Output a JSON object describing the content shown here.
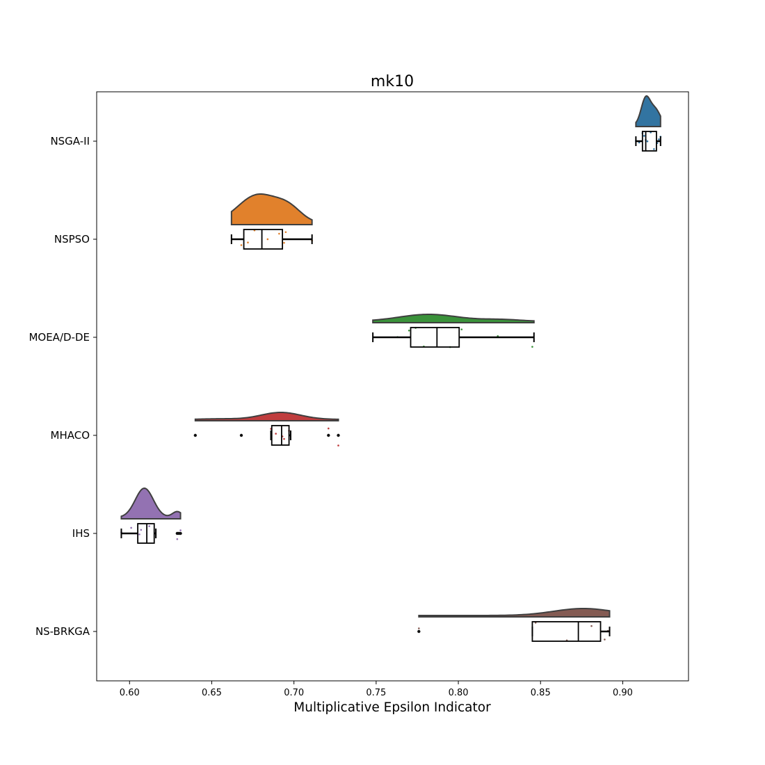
{
  "chart_data": {
    "type": "raincloud",
    "title": "mk10",
    "xlabel": "Multiplicative Epsilon Indicator",
    "ylabel": "",
    "xlim": [
      0.58,
      0.94
    ],
    "xticks": [
      "0.60",
      "0.65",
      "0.70",
      "0.75",
      "0.80",
      "0.85",
      "0.90"
    ],
    "categories": [
      "NSGA-II",
      "NSPSO",
      "MOEA/D-DE",
      "MHACO",
      "IHS",
      "NS-BRKGA"
    ],
    "series": [
      {
        "name": "NSGA-II",
        "color": "#3274a1",
        "box": {
          "whislo": 0.908,
          "q1": 0.912,
          "med": 0.914,
          "q3": 0.9205,
          "whishi": 0.923
        },
        "fliers": [],
        "violin_range": [
          0.908,
          0.923
        ],
        "kde_peaks": [
          {
            "mu": 0.914,
            "sigma": 0.0028,
            "w": 1.0
          },
          {
            "mu": 0.92,
            "sigma": 0.003,
            "w": 0.55
          }
        ],
        "points": [
          0.908,
          0.91,
          0.912,
          0.913,
          0.914,
          0.915,
          0.917,
          0.919,
          0.921,
          0.922,
          0.923
        ]
      },
      {
        "name": "NSPSO",
        "color": "#e1812c",
        "box": {
          "whislo": 0.662,
          "q1": 0.6695,
          "med": 0.6805,
          "q3": 0.693,
          "whishi": 0.711
        },
        "fliers": [],
        "violin_range": [
          0.662,
          0.711
        ],
        "kde_peaks": [
          {
            "mu": 0.678,
            "sigma": 0.012,
            "w": 1.0
          },
          {
            "mu": 0.697,
            "sigma": 0.008,
            "w": 0.45
          }
        ],
        "points": [
          0.668,
          0.672,
          0.676,
          0.684,
          0.691,
          0.694,
          0.695,
          0.711
        ]
      },
      {
        "name": "MOEA/D-DE",
        "color": "#3a923a",
        "box": {
          "whislo": 0.748,
          "q1": 0.771,
          "med": 0.787,
          "q3": 0.8005,
          "whishi": 0.846
        },
        "fliers": [],
        "violin_range": [
          0.748,
          0.846
        ],
        "kde_peaks": [
          {
            "mu": 0.782,
            "sigma": 0.018,
            "w": 1.0
          },
          {
            "mu": 0.826,
            "sigma": 0.012,
            "w": 0.25
          }
        ],
        "points": [
          0.763,
          0.77,
          0.774,
          0.779,
          0.795,
          0.802,
          0.824,
          0.845
        ]
      },
      {
        "name": "MHACO",
        "color": "#c03d3e",
        "box": {
          "whislo": 0.686,
          "q1": 0.6865,
          "med": 0.6925,
          "q3": 0.697,
          "whishi": 0.698
        },
        "fliers": [
          0.64,
          0.668,
          0.721,
          0.727
        ],
        "violin_range": [
          0.64,
          0.727
        ],
        "kde_peaks": [
          {
            "mu": 0.692,
            "sigma": 0.012,
            "w": 1.0
          },
          {
            "mu": 0.655,
            "sigma": 0.01,
            "w": 0.08
          }
        ],
        "points": [
          0.686,
          0.689,
          0.693,
          0.694,
          0.697,
          0.721,
          0.727
        ]
      },
      {
        "name": "IHS",
        "color": "#9372b2",
        "box": {
          "whislo": 0.595,
          "q1": 0.605,
          "med": 0.6105,
          "q3": 0.615,
          "whishi": 0.616
        },
        "fliers": [
          0.629,
          0.63,
          0.631
        ],
        "violin_range": [
          0.595,
          0.631
        ],
        "kde_peaks": [
          {
            "mu": 0.609,
            "sigma": 0.0055,
            "w": 1.0
          },
          {
            "mu": 0.629,
            "sigma": 0.003,
            "w": 0.2
          }
        ],
        "points": [
          0.595,
          0.601,
          0.606,
          0.607,
          0.612,
          0.629,
          0.631
        ]
      },
      {
        "name": "NS-BRKGA",
        "color": "#845b53",
        "box": {
          "whislo": 0.845,
          "q1": 0.845,
          "med": 0.873,
          "q3": 0.8865,
          "whishi": 0.892
        },
        "fliers": [
          0.776
        ],
        "violin_range": [
          0.776,
          0.892
        ],
        "kde_peaks": [
          {
            "mu": 0.876,
            "sigma": 0.018,
            "w": 1.0
          }
        ],
        "points": [
          0.776,
          0.847,
          0.866,
          0.881,
          0.889,
          0.891
        ]
      }
    ]
  }
}
